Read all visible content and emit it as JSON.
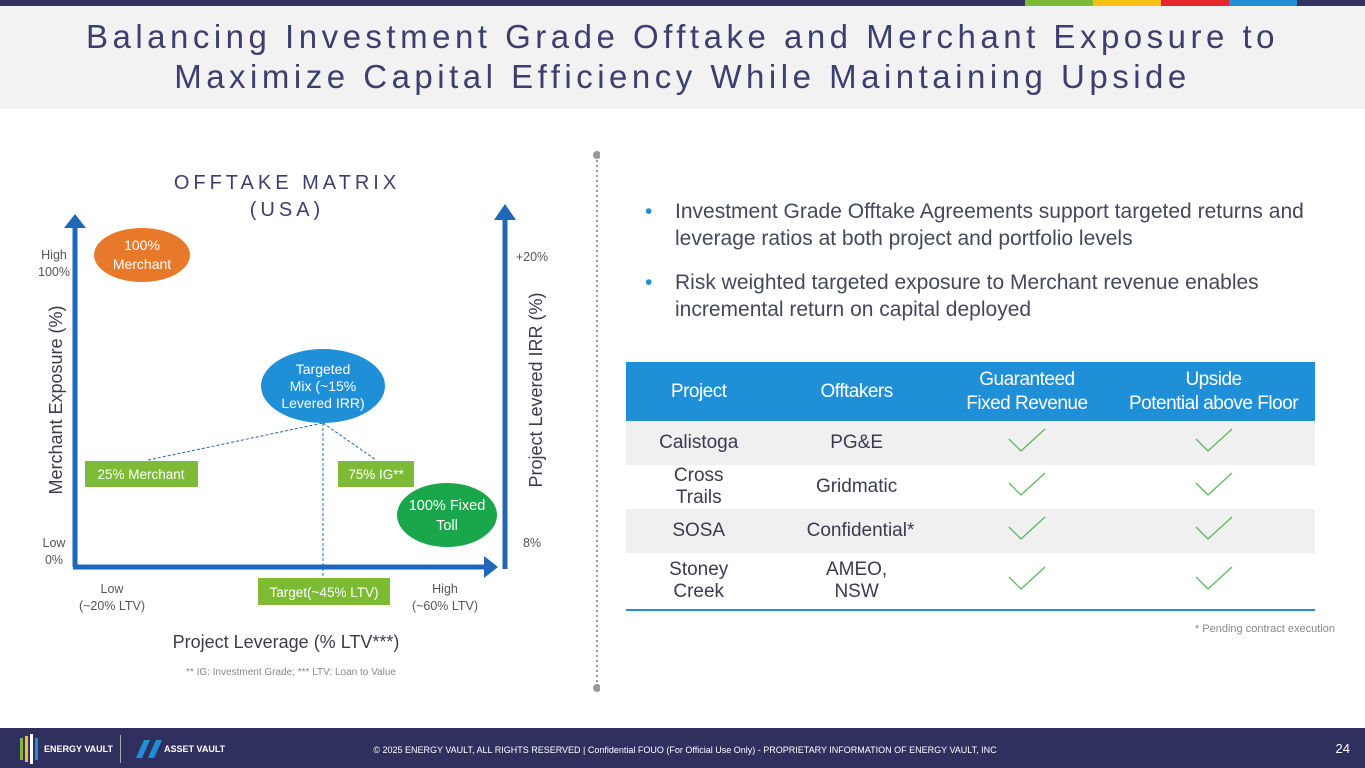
{
  "header": {
    "title_lines": [
      "Balancing Investment Grade Offtake and Merchant Exposure to",
      "Maximize Capital Efficiency While Maintaining Upside"
    ]
  },
  "matrix": {
    "title_lines": [
      "OFFTAKE MATRIX",
      "(USA)"
    ],
    "y_axis_label": "Merchant Exposure (%)",
    "y_high": [
      "High",
      "100%"
    ],
    "y_low": [
      "Low",
      "0%"
    ],
    "y2_axis_label": "Project Levered IRR (%)",
    "y2_high": "+20%",
    "y2_low": "8%",
    "x_axis_label": "Project Leverage (% LTV***)",
    "x_low": [
      "Low",
      "(~20% LTV)"
    ],
    "x_high": [
      "High",
      "(~60% LTV)"
    ],
    "merchant_bubble": [
      "100%",
      "Merchant"
    ],
    "target_bubble": [
      "Targeted",
      "Mix (~15%",
      "Levered IRR)"
    ],
    "toll_bubble": [
      "100% Fixed",
      "Toll"
    ],
    "merchant_tag": "25% Merchant",
    "ig_tag": "75% IG**",
    "target_tag": "Target(~45% LTV)",
    "footnote": "** IG: Investment Grade; *** LTV: Loan to Value"
  },
  "bullets": [
    "Investment Grade Offtake Agreements support targeted returns and leverage ratios at both project and portfolio levels",
    "Risk weighted targeted exposure to Merchant revenue enables incremental return on capital deployed"
  ],
  "table": {
    "headers": [
      [
        "Project"
      ],
      [
        "Offtakers"
      ],
      [
        "Guaranteed",
        "Fixed Revenue"
      ],
      [
        "Upside",
        "Potential above Floor"
      ]
    ],
    "rows": [
      [
        "Calistoga",
        "PG&E"
      ],
      [
        "Cross Trails",
        "Gridmatic"
      ],
      [
        "SOSA",
        "Confidential*"
      ],
      [
        "Stoney Creek",
        "AMEO, NSW"
      ]
    ],
    "note": "* Pending contract execution"
  },
  "footer": {
    "logo_left": "ENERGY VAULT",
    "logo_right": "ASSET VAULT",
    "copyright": "© 2025 ENERGY VAULT, ALL RIGHTS RESERVED | Confidential FOUO (For Official Use Only) - PROPRIETARY INFORMATION OF ENERGY VAULT, INC",
    "page": "24"
  }
}
